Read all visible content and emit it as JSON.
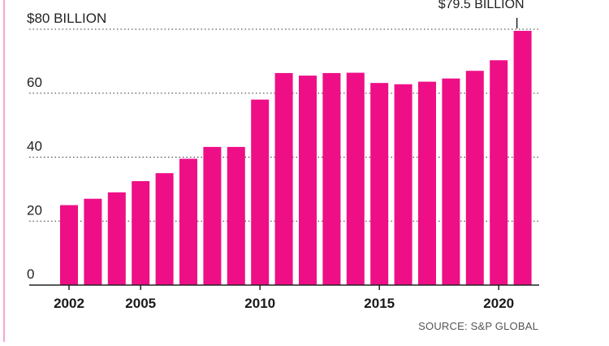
{
  "chart_data": {
    "type": "bar",
    "title": "",
    "xlabel": "",
    "ylabel": "",
    "categories": [
      "2002",
      "2003",
      "2004",
      "2005",
      "2006",
      "2007",
      "2008",
      "2009",
      "2010",
      "2011",
      "2012",
      "2013",
      "2014",
      "2015",
      "2016",
      "2017",
      "2018",
      "2019",
      "2020",
      "2021"
    ],
    "values": [
      25,
      27,
      29,
      32.5,
      35,
      39.5,
      43.2,
      43.2,
      58,
      66.3,
      65.5,
      66.3,
      66.4,
      63.2,
      62.8,
      63.6,
      64.6,
      67,
      70.3,
      79.5
    ],
    "ylim": [
      0,
      80
    ],
    "yticks": [
      {
        "value": 0,
        "label": "0"
      },
      {
        "value": 20,
        "label": "20"
      },
      {
        "value": 40,
        "label": "40"
      },
      {
        "value": 60,
        "label": "60"
      },
      {
        "value": 80,
        "label": "$80 BILLION"
      }
    ],
    "xtick_labels": [
      {
        "category": "2002",
        "label": "2002"
      },
      {
        "category": "2005",
        "label": "2005"
      },
      {
        "category": "2010",
        "label": "2010"
      },
      {
        "category": "2015",
        "label": "2015"
      },
      {
        "category": "2020",
        "label": "2020"
      }
    ],
    "annotation": {
      "category": "2021",
      "value": 79.5,
      "text": "$79.5 BILLION"
    },
    "grid": true,
    "grid_style": "dotted",
    "source": "SOURCE: S&P GLOBAL",
    "colors": {
      "bar": "#ee0f87",
      "grid": "#333333",
      "axis": "#222222",
      "left_rule": "#f2a6cf"
    }
  }
}
